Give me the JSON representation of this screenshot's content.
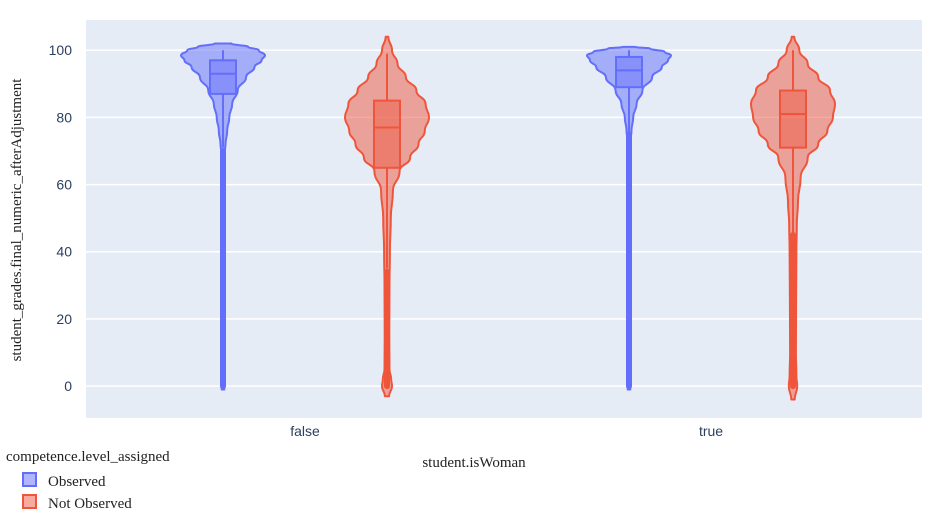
{
  "chart_data": {
    "type": "violin",
    "title": "",
    "xlabel": "student.isWoman",
    "ylabel": "student_grades.final_numeric_afterAdjustment",
    "categories": [
      "false",
      "true"
    ],
    "y_ticks": [
      0,
      20,
      40,
      60,
      80,
      100
    ],
    "ylim": [
      -9.5,
      109
    ],
    "grid": true,
    "legend": {
      "title": "competence.level_assigned",
      "placement": "bottom-left"
    },
    "series": [
      {
        "name": "Observed",
        "color": "#636efa",
        "groups": [
          {
            "category": "false",
            "box": {
              "q1": 87,
              "median": 93,
              "q3": 97,
              "lower_whisker": 71,
              "upper_whisker": 100
            },
            "range": [
              -1,
              102
            ],
            "density": [
              [
                -1,
                0.03
              ],
              [
                5,
                0.035
              ],
              [
                20,
                0.035
              ],
              [
                40,
                0.035
              ],
              [
                60,
                0.035
              ],
              [
                70,
                0.045
              ],
              [
                72,
                0.06
              ],
              [
                76,
                0.1
              ],
              [
                80,
                0.15
              ],
              [
                84,
                0.22
              ],
              [
                88,
                0.35
              ],
              [
                92,
                0.55
              ],
              [
                95,
                0.75
              ],
              [
                97,
                0.92
              ],
              [
                98.5,
                1.0
              ],
              [
                100,
                0.85
              ],
              [
                101,
                0.6
              ],
              [
                102,
                0.2
              ]
            ],
            "outliers_range": [
              0,
              70
            ]
          },
          {
            "category": "true",
            "box": {
              "q1": 89,
              "median": 94,
              "q3": 98,
              "lower_whisker": 75,
              "upper_whisker": 100
            },
            "range": [
              -1,
              101
            ],
            "density": [
              [
                -1,
                0.03
              ],
              [
                5,
                0.035
              ],
              [
                20,
                0.035
              ],
              [
                40,
                0.035
              ],
              [
                60,
                0.035
              ],
              [
                74,
                0.045
              ],
              [
                76,
                0.06
              ],
              [
                80,
                0.1
              ],
              [
                84,
                0.18
              ],
              [
                88,
                0.32
              ],
              [
                92,
                0.55
              ],
              [
                95,
                0.78
              ],
              [
                97,
                0.93
              ],
              [
                98.5,
                1.0
              ],
              [
                99.5,
                0.85
              ],
              [
                100.5,
                0.5
              ],
              [
                101,
                0.15
              ]
            ],
            "outliers_range": [
              0,
              75
            ]
          }
        ]
      },
      {
        "name": "Not Observed",
        "color": "#ef553b",
        "groups": [
          {
            "category": "false",
            "box": {
              "q1": 65,
              "median": 77,
              "q3": 85,
              "lower_whisker": 35,
              "upper_whisker": 99
            },
            "range": [
              -3,
              104
            ],
            "density": [
              [
                -3,
                0.05
              ],
              [
                0,
                0.12
              ],
              [
                2,
                0.1
              ],
              [
                5,
                0.06
              ],
              [
                15,
                0.055
              ],
              [
                30,
                0.06
              ],
              [
                40,
                0.07
              ],
              [
                50,
                0.09
              ],
              [
                58,
                0.14
              ],
              [
                64,
                0.3
              ],
              [
                68,
                0.55
              ],
              [
                72,
                0.75
              ],
              [
                76,
                0.9
              ],
              [
                80,
                1.0
              ],
              [
                84,
                0.92
              ],
              [
                88,
                0.7
              ],
              [
                92,
                0.45
              ],
              [
                96,
                0.25
              ],
              [
                100,
                0.12
              ],
              [
                104,
                0.03
              ]
            ],
            "outliers_range": [
              0,
              34
            ]
          },
          {
            "category": "true",
            "box": {
              "q1": 71,
              "median": 81,
              "q3": 88,
              "lower_whisker": 45,
              "upper_whisker": 100
            },
            "range": [
              -4,
              104
            ],
            "density": [
              [
                -4,
                0.04
              ],
              [
                0,
                0.1
              ],
              [
                3,
                0.08
              ],
              [
                10,
                0.07
              ],
              [
                25,
                0.075
              ],
              [
                40,
                0.08
              ],
              [
                48,
                0.09
              ],
              [
                55,
                0.12
              ],
              [
                62,
                0.18
              ],
              [
                68,
                0.35
              ],
              [
                72,
                0.6
              ],
              [
                76,
                0.82
              ],
              [
                80,
                0.95
              ],
              [
                84,
                1.0
              ],
              [
                88,
                0.88
              ],
              [
                92,
                0.6
              ],
              [
                96,
                0.35
              ],
              [
                100,
                0.15
              ],
              [
                104,
                0.03
              ]
            ],
            "outliers_range": [
              0,
              45
            ]
          }
        ]
      }
    ]
  }
}
